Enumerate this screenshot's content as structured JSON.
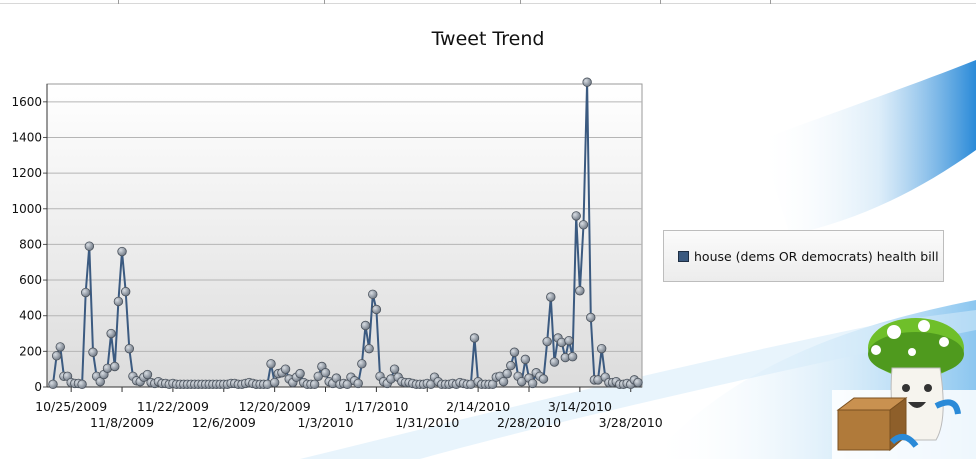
{
  "chart_data": {
    "type": "line",
    "title": "Tweet Trend",
    "xlabel": "",
    "ylabel": "",
    "ylim": [
      0,
      1700
    ],
    "yticks": [
      0,
      200,
      400,
      600,
      800,
      1000,
      1200,
      1400,
      1600
    ],
    "grid": true,
    "legend_position": "right",
    "x_tick_labels": [
      {
        "label": "10/25/2009",
        "row": 1
      },
      {
        "label": "11/8/2009",
        "row": 2
      },
      {
        "label": "11/22/2009",
        "row": 1
      },
      {
        "label": "12/6/2009",
        "row": 2
      },
      {
        "label": "12/20/2009",
        "row": 1
      },
      {
        "label": "1/3/2010",
        "row": 2
      },
      {
        "label": "1/17/2010",
        "row": 1
      },
      {
        "label": "1/31/2010",
        "row": 2
      },
      {
        "label": "2/14/2010",
        "row": 1
      },
      {
        "label": "2/28/2010",
        "row": 2
      },
      {
        "label": "3/14/2010",
        "row": 1
      },
      {
        "label": "3/28/2010",
        "row": 2
      }
    ],
    "x_start_date": "2009-10-20",
    "series": [
      {
        "name": "house (dems OR democrats) health bill",
        "color": "#3b5a80",
        "values": [
          15,
          175,
          225,
          60,
          60,
          25,
          20,
          20,
          15,
          530,
          790,
          195,
          60,
          30,
          70,
          105,
          300,
          115,
          480,
          760,
          535,
          215,
          60,
          35,
          30,
          55,
          70,
          25,
          20,
          30,
          20,
          20,
          15,
          20,
          15,
          15,
          15,
          15,
          15,
          15,
          15,
          15,
          15,
          15,
          15,
          15,
          15,
          15,
          15,
          20,
          20,
          15,
          15,
          20,
          25,
          20,
          15,
          15,
          15,
          15,
          130,
          25,
          75,
          80,
          100,
          45,
          25,
          55,
          75,
          25,
          15,
          15,
          15,
          60,
          115,
          80,
          30,
          20,
          50,
          15,
          20,
          15,
          55,
          35,
          20,
          130,
          345,
          215,
          520,
          435,
          60,
          30,
          20,
          45,
          100,
          55,
          30,
          25,
          25,
          20,
          15,
          15,
          15,
          20,
          15,
          55,
          30,
          15,
          15,
          15,
          20,
          15,
          25,
          20,
          15,
          15,
          275,
          30,
          15,
          15,
          15,
          15,
          55,
          60,
          30,
          75,
          120,
          195,
          60,
          30,
          155,
          50,
          20,
          80,
          60,
          45,
          255,
          505,
          140,
          275,
          250,
          165,
          260,
          170,
          960,
          540,
          910,
          1710,
          390,
          40,
          40,
          215,
          55,
          25,
          25,
          30,
          15,
          15,
          20,
          15,
          40,
          25
        ]
      }
    ]
  },
  "legend": {
    "label": "house (dems OR democrats) health bill",
    "color": "#3b5a80"
  }
}
